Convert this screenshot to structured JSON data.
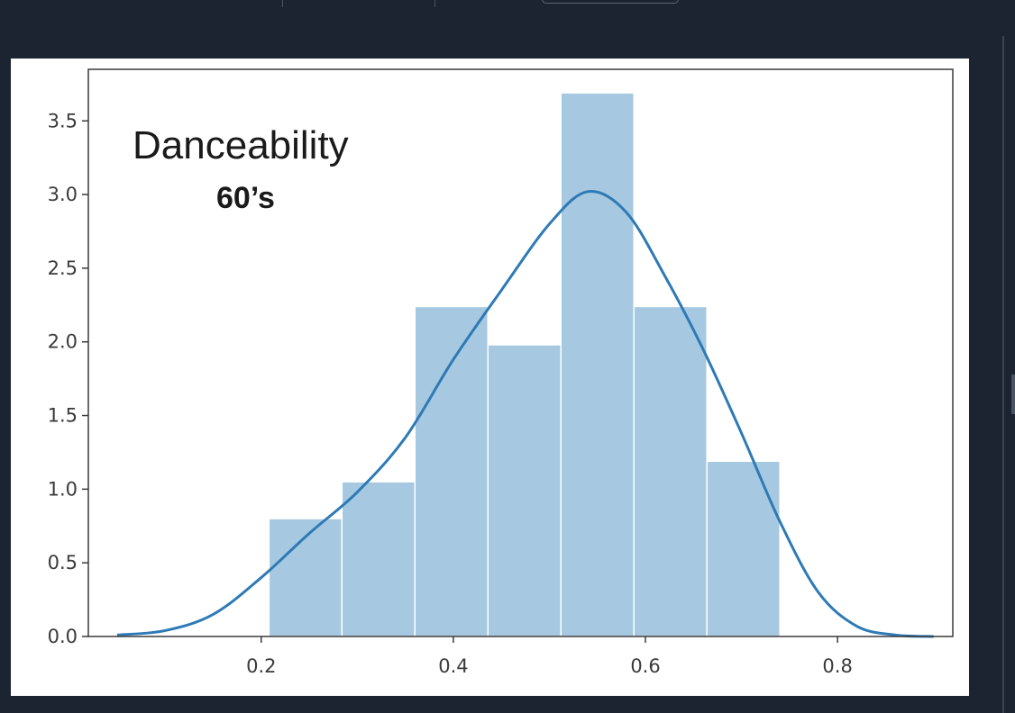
{
  "colors": {
    "background": "#1b2430",
    "bar_fill": "#a6c8e0",
    "bar_edge": "#ffffff",
    "kde_line": "#2e7ab6",
    "axes": "#3a3a3a"
  },
  "chart_data": {
    "type": "bar",
    "subtype": "histogram_with_kde",
    "title": "Danceability",
    "subtitle": "60’s",
    "xlabel": "",
    "ylabel": "",
    "xlim": [
      0.02,
      0.92
    ],
    "ylim": [
      0.0,
      3.85
    ],
    "grid": false,
    "x_ticks": [
      0.2,
      0.4,
      0.6,
      0.8
    ],
    "x_tick_labels": [
      "0.2",
      "0.4",
      "0.6",
      "0.8"
    ],
    "y_ticks": [
      0.0,
      0.5,
      1.0,
      1.5,
      2.0,
      2.5,
      3.0,
      3.5
    ],
    "y_tick_labels": [
      "0.0",
      "0.5",
      "1.0",
      "1.5",
      "2.0",
      "2.5",
      "3.0",
      "3.5"
    ],
    "bins": [
      {
        "x0": 0.208,
        "x1": 0.284,
        "value": 0.8
      },
      {
        "x0": 0.284,
        "x1": 0.36,
        "value": 1.05
      },
      {
        "x0": 0.36,
        "x1": 0.436,
        "value": 2.24
      },
      {
        "x0": 0.436,
        "x1": 0.512,
        "value": 1.98
      },
      {
        "x0": 0.512,
        "x1": 0.588,
        "value": 3.69
      },
      {
        "x0": 0.588,
        "x1": 0.664,
        "value": 2.24
      },
      {
        "x0": 0.664,
        "x1": 0.74,
        "value": 1.19
      }
    ],
    "kde": {
      "x": [
        0.05,
        0.1,
        0.15,
        0.2,
        0.25,
        0.3,
        0.35,
        0.4,
        0.45,
        0.5,
        0.54,
        0.58,
        0.62,
        0.66,
        0.7,
        0.74,
        0.78,
        0.82,
        0.86,
        0.9
      ],
      "y": [
        0.01,
        0.04,
        0.15,
        0.4,
        0.7,
        0.98,
        1.35,
        1.88,
        2.35,
        2.8,
        3.02,
        2.88,
        2.45,
        1.95,
        1.38,
        0.78,
        0.3,
        0.07,
        0.01,
        0.0
      ]
    }
  }
}
